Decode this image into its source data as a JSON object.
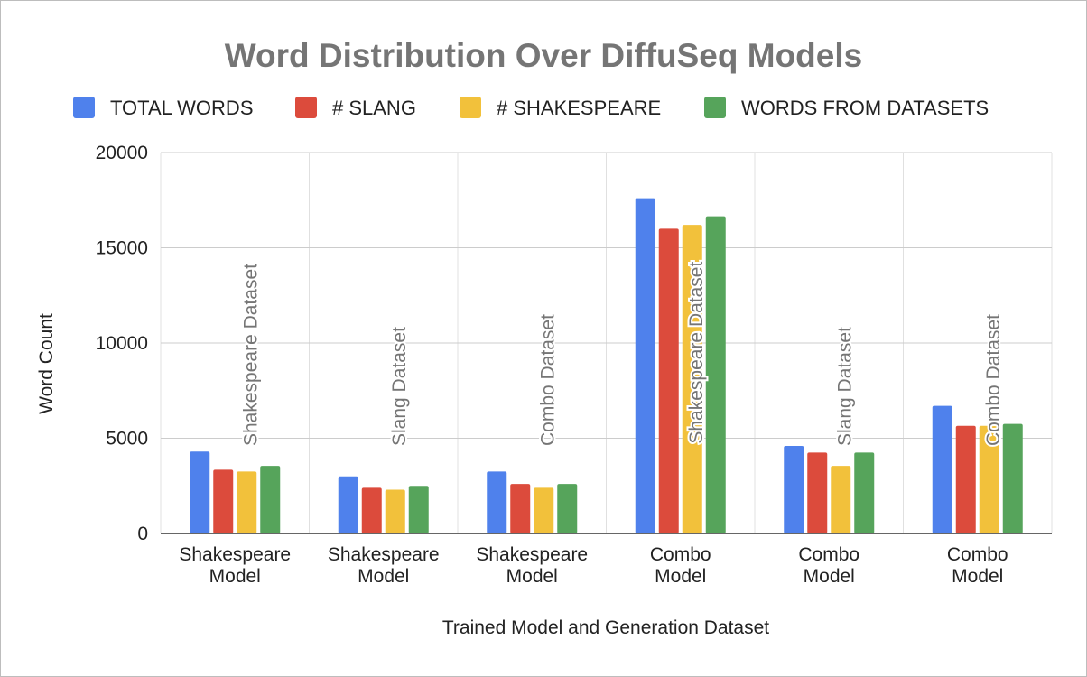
{
  "chart_data": {
    "type": "bar",
    "title": "Word Distribution Over DiffuSeq Models",
    "xlabel": "Trained Model and Generation Dataset",
    "ylabel": "Word Count",
    "ylim": [
      0,
      20000
    ],
    "yticks": [
      0,
      5000,
      10000,
      15000,
      20000
    ],
    "grid": true,
    "legend_position": "top",
    "categories": [
      [
        "Shakespeare",
        "Model"
      ],
      [
        "Shakespeare",
        "Model"
      ],
      [
        "Shakespeare",
        "Model"
      ],
      [
        "Combo",
        "Model"
      ],
      [
        "Combo",
        "Model"
      ],
      [
        "Combo",
        "Model"
      ]
    ],
    "annotations": [
      "Shakespeare Dataset",
      "Slang Dataset",
      "Combo Dataset",
      "Shakespeare Dataset",
      "Slang Dataset",
      "Combo Dataset"
    ],
    "series": [
      {
        "name": "TOTAL WORDS",
        "color": "#4f81ec",
        "values": [
          4300,
          3000,
          3250,
          17600,
          4600,
          6700
        ]
      },
      {
        "name": "# SLANG",
        "color": "#dc4b3c",
        "values": [
          3350,
          2400,
          2600,
          16000,
          4250,
          5650
        ]
      },
      {
        "name": "# SHAKESPEARE",
        "color": "#f2c13b",
        "values": [
          3250,
          2300,
          2400,
          16200,
          3550,
          5650
        ]
      },
      {
        "name": "WORDS FROM DATASETS",
        "color": "#56a45b",
        "values": [
          3550,
          2500,
          2600,
          16650,
          4250,
          5750
        ]
      }
    ]
  }
}
